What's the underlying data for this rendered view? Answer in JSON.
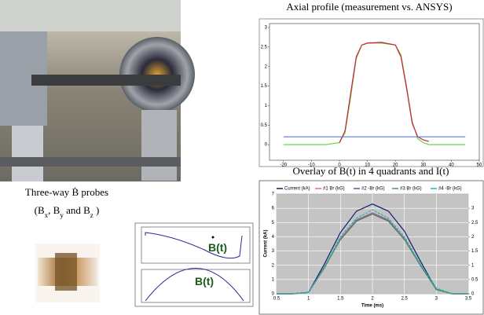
{
  "captions": {
    "axial_title": "Axial profile (measurement vs. ANSYS)",
    "overlay_title": "Overlay of B(t) in 4 quadrants and I(t)",
    "probes_title": "Three-way Ḃ probes",
    "probes_axes": [
      "(B",
      "x",
      ", B",
      "y",
      " and B",
      "z",
      " )"
    ]
  },
  "probe_plots": {
    "labels": [
      "B(t)",
      "B(t)"
    ]
  },
  "axial_chart": {
    "type": "line",
    "xlim": [
      -25,
      50
    ],
    "ylim": [
      -0.4,
      3.1
    ],
    "xticks": [
      -20,
      -10,
      0,
      10,
      20,
      30,
      40,
      50
    ],
    "yticks": [
      0,
      0.5,
      1,
      1.5,
      2,
      2.5,
      3
    ],
    "x": [
      -20,
      -10,
      -5,
      0,
      2,
      4,
      6,
      8,
      10,
      15,
      20,
      22,
      24,
      26,
      28,
      30,
      32,
      40,
      45
    ],
    "series": [
      {
        "color": "#6ad64a",
        "values": [
          0,
          0,
          0,
          0.05,
          0.3,
          1.2,
          2.2,
          2.55,
          2.6,
          2.6,
          2.55,
          2.3,
          1.5,
          0.6,
          0.15,
          0.05,
          0,
          0,
          0
        ]
      },
      {
        "color": "#d0203a",
        "values": [
          null,
          null,
          null,
          0.05,
          0.35,
          1.3,
          2.25,
          2.55,
          2.6,
          2.62,
          2.55,
          2.25,
          1.45,
          0.55,
          0.2,
          0.12,
          0.08,
          null,
          null
        ]
      },
      {
        "color": "#5a7ad8",
        "values": [
          0.2,
          0.2,
          0.2,
          0.2,
          0.2,
          0.2,
          0.2,
          0.2,
          0.2,
          0.2,
          0.2,
          0.2,
          0.2,
          0.2,
          0.2,
          0.2,
          0.2,
          0.2,
          0.2
        ]
      }
    ]
  },
  "overlay_chart": {
    "type": "line",
    "xlabel": "Time (ms)",
    "ylabel": "Current (kA)",
    "xlim": [
      0.5,
      3.5
    ],
    "ylim": [
      0,
      7
    ],
    "y2lim": [
      0,
      3.5
    ],
    "xticks": [
      0.5,
      1,
      1.5,
      2,
      2.5,
      3,
      3.5
    ],
    "yticks": [
      0,
      1,
      2,
      3,
      4,
      5,
      6,
      7
    ],
    "y2ticks": [
      0,
      0.5,
      1,
      1.5,
      2,
      2.5,
      3
    ],
    "x": [
      0.5,
      0.75,
      1,
      1.25,
      1.5,
      1.75,
      2,
      2.25,
      2.5,
      2.75,
      3,
      3.25,
      3.5
    ],
    "series": [
      {
        "name": "Current (kA)",
        "color": "#1a1a6e",
        "values": [
          0,
          0,
          0.1,
          2.1,
          4.3,
          5.8,
          6.3,
          5.8,
          4.4,
          2.3,
          0.3,
          0,
          0
        ]
      },
      {
        "name": "#1 Br (kG)",
        "color": "#e060b0",
        "axis": "y2",
        "values": [
          0,
          0,
          0.05,
          0.9,
          1.95,
          2.6,
          2.85,
          2.6,
          1.95,
          1.0,
          0.15,
          0,
          0
        ]
      },
      {
        "name": "#2 -Br (kG)",
        "color": "#8040a0",
        "axis": "y2",
        "values": [
          0,
          0,
          0.05,
          0.95,
          1.9,
          2.55,
          2.8,
          2.55,
          1.9,
          1.0,
          0.15,
          0,
          0
        ]
      },
      {
        "name": "#3 Br (kG)",
        "color": "#40a040",
        "axis": "y2",
        "values": [
          0,
          0,
          0.05,
          0.92,
          1.92,
          2.58,
          2.82,
          2.58,
          1.92,
          1.02,
          0.16,
          0,
          0
        ]
      },
      {
        "name": "#4 -Br (kG)",
        "color": "#20b0c8",
        "axis": "y2",
        "values": [
          0,
          0,
          0.05,
          0.95,
          2.0,
          2.65,
          2.95,
          2.65,
          2.0,
          1.05,
          0.2,
          0,
          0
        ]
      }
    ]
  }
}
